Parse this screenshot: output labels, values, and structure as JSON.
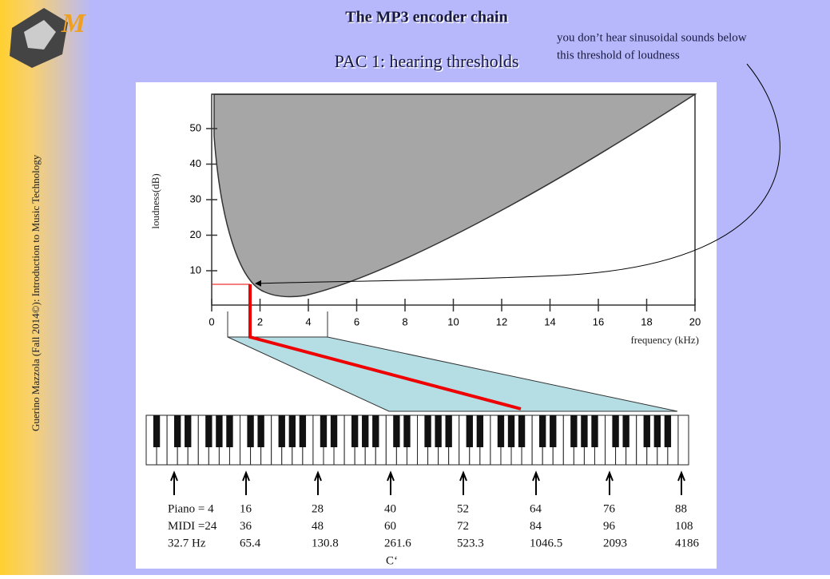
{
  "slide": {
    "title": "The MP3 encoder chain",
    "subtitle": "PAC 1: hearing thresholds",
    "sidebar": "Guerino Mazzola (Fall 2014©): Introduction to Music Technology",
    "annotation": [
      "you don’t hear sinusoidal sounds below",
      "this threshold of loudness"
    ]
  },
  "figure": {
    "y_label": "loudness(dB)",
    "x_label": "frequency (kHz)",
    "y_ticks": [
      "10",
      "20",
      "30",
      "40",
      "50"
    ],
    "x_ticks": [
      "0",
      "2",
      "4",
      "6",
      "8",
      "10",
      "12",
      "14",
      "16",
      "18",
      "20"
    ],
    "piano": {
      "rows": [
        [
          "Piano = 4",
          "16",
          "28",
          "40",
          "52",
          "64",
          "76",
          "88"
        ],
        [
          "MIDI =24",
          "36",
          "48",
          "60",
          "72",
          "84",
          "96",
          "108"
        ],
        [
          "32.7 Hz",
          "65.4",
          "130.8",
          "261.6",
          "523.3",
          "1046.5",
          "2093",
          "4186"
        ]
      ],
      "c_label": "C‘"
    }
  }
}
